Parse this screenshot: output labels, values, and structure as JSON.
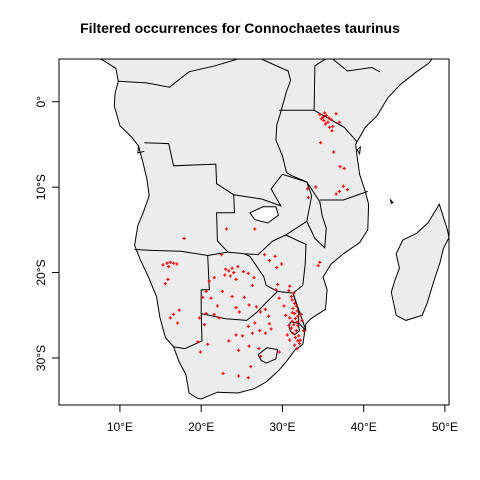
{
  "title": "Filtered occurrences for Connochaetes taurinus",
  "colors": {
    "land": "#ececec",
    "border": "#000000",
    "points": "#ff0000",
    "frame": "#000000"
  },
  "map": {
    "xlim": [
      2.5,
      50.5
    ],
    "ylim": [
      -35.5,
      5.0
    ],
    "x_ticks": [
      {
        "value": 10,
        "label": "10°E"
      },
      {
        "value": 20,
        "label": "20°E"
      },
      {
        "value": 30,
        "label": "30°E"
      },
      {
        "value": 40,
        "label": "40°E"
      },
      {
        "value": 50,
        "label": "50°E"
      }
    ],
    "y_ticks": [
      {
        "value": 0,
        "label": "0°"
      },
      {
        "value": -10,
        "label": "10°S"
      },
      {
        "value": -20,
        "label": "20°S"
      },
      {
        "value": -30,
        "label": "30°S"
      }
    ],
    "occurrences": [
      [
        35.2,
        -1.3
      ],
      [
        35.4,
        -1.6
      ],
      [
        35.0,
        -1.8
      ],
      [
        34.8,
        -2.0
      ],
      [
        35.1,
        -2.2
      ],
      [
        35.6,
        -2.4
      ],
      [
        35.3,
        -2.6
      ],
      [
        35.7,
        -1.9
      ],
      [
        36.0,
        -2.1
      ],
      [
        36.2,
        -2.9
      ],
      [
        34.6,
        -1.5
      ],
      [
        35.8,
        -3.0
      ],
      [
        36.6,
        -1.4
      ],
      [
        37.0,
        -2.4
      ],
      [
        36.1,
        -3.4
      ],
      [
        37.1,
        -7.6
      ],
      [
        37.6,
        -7.8
      ],
      [
        36.3,
        -5.9
      ],
      [
        34.7,
        -4.8
      ],
      [
        37.5,
        -9.9
      ],
      [
        38.0,
        -10.3
      ],
      [
        37.0,
        -10.5
      ],
      [
        36.6,
        -10.8
      ],
      [
        33.1,
        -10.2
      ],
      [
        33.2,
        -11.2
      ],
      [
        34.1,
        -10.0
      ],
      [
        15.3,
        -19.1
      ],
      [
        15.8,
        -18.9
      ],
      [
        16.2,
        -18.8
      ],
      [
        16.6,
        -18.9
      ],
      [
        17.0,
        -19.0
      ],
      [
        16.0,
        -19.3
      ],
      [
        15.9,
        -20.8
      ],
      [
        15.6,
        -21.3
      ],
      [
        17.9,
        -16.0
      ],
      [
        23.0,
        -19.6
      ],
      [
        23.4,
        -19.8
      ],
      [
        23.8,
        -19.5
      ],
      [
        24.0,
        -20.0
      ],
      [
        22.9,
        -20.3
      ],
      [
        23.6,
        -20.4
      ],
      [
        24.5,
        -19.3
      ],
      [
        24.3,
        -20.8
      ],
      [
        25.2,
        -19.9
      ],
      [
        25.8,
        -20.1
      ],
      [
        26.5,
        -20.6
      ],
      [
        26.3,
        -21.5
      ],
      [
        21.0,
        -21.0
      ],
      [
        21.6,
        -20.6
      ],
      [
        22.5,
        -17.9
      ],
      [
        23.1,
        -14.9
      ],
      [
        26.6,
        -14.9
      ],
      [
        20.6,
        -22.2
      ],
      [
        20.2,
        -22.9
      ],
      [
        21.2,
        -23.0
      ],
      [
        22.0,
        -23.9
      ],
      [
        21.6,
        -24.9
      ],
      [
        22.2,
        -25.3
      ],
      [
        22.6,
        -22.2
      ],
      [
        23.8,
        -22.8
      ],
      [
        24.3,
        -24.1
      ],
      [
        24.7,
        -24.6
      ],
      [
        25.3,
        -22.9
      ],
      [
        25.9,
        -23.8
      ],
      [
        26.8,
        -24.0
      ],
      [
        27.3,
        -24.6
      ],
      [
        27.9,
        -24.3
      ],
      [
        28.3,
        -25.1
      ],
      [
        26.6,
        -25.9
      ],
      [
        25.8,
        -26.3
      ],
      [
        26.3,
        -27.1
      ],
      [
        27.2,
        -26.8
      ],
      [
        28.4,
        -26.0
      ],
      [
        27.9,
        -27.1
      ],
      [
        25.1,
        -27.4
      ],
      [
        24.3,
        -27.3
      ],
      [
        23.4,
        -28.0
      ],
      [
        24.6,
        -29.1
      ],
      [
        25.9,
        -28.6
      ],
      [
        27.1,
        -28.9
      ],
      [
        28.6,
        -26.6
      ],
      [
        19.8,
        -25.3
      ],
      [
        20.4,
        -26.1
      ],
      [
        20.6,
        -24.8
      ],
      [
        19.6,
        -28.1
      ],
      [
        19.9,
        -29.3
      ],
      [
        20.8,
        -28.4
      ],
      [
        16.2,
        -25.3
      ],
      [
        17.1,
        -25.9
      ],
      [
        17.3,
        -24.4
      ],
      [
        16.6,
        -24.9
      ],
      [
        31.2,
        -23.2
      ],
      [
        31.5,
        -23.6
      ],
      [
        31.7,
        -23.9
      ],
      [
        31.3,
        -24.2
      ],
      [
        31.8,
        -24.5
      ],
      [
        31.5,
        -24.8
      ],
      [
        31.9,
        -25.1
      ],
      [
        31.6,
        -25.4
      ],
      [
        31.2,
        -25.7
      ],
      [
        31.8,
        -25.8
      ],
      [
        31.4,
        -26.1
      ],
      [
        31.1,
        -26.5
      ],
      [
        31.7,
        -26.8
      ],
      [
        31.3,
        -27.1
      ],
      [
        32.0,
        -27.4
      ],
      [
        31.6,
        -27.6
      ],
      [
        31.9,
        -28.0
      ],
      [
        32.1,
        -28.3
      ],
      [
        31.5,
        -28.5
      ],
      [
        31.8,
        -28.9
      ],
      [
        32.2,
        -27.9
      ],
      [
        30.9,
        -27.9
      ],
      [
        30.6,
        -27.3
      ],
      [
        30.8,
        -26.2
      ],
      [
        30.4,
        -25.0
      ],
      [
        30.2,
        -23.9
      ],
      [
        31.1,
        -22.8
      ],
      [
        31.4,
        -22.4
      ],
      [
        30.8,
        -22.1
      ],
      [
        29.6,
        -23.0
      ],
      [
        29.2,
        -22.0
      ],
      [
        29.4,
        -21.4
      ],
      [
        30.9,
        -21.6
      ],
      [
        31.2,
        -24.7
      ],
      [
        30.9,
        -25.3
      ],
      [
        32.3,
        -24.9
      ],
      [
        32.4,
        -25.6
      ],
      [
        31.9,
        -26.2
      ],
      [
        32.6,
        -26.8
      ],
      [
        29.1,
        -18.1
      ],
      [
        28.4,
        -18.6
      ],
      [
        27.8,
        -17.9
      ],
      [
        29.9,
        -19.0
      ],
      [
        29.3,
        -19.4
      ],
      [
        34.6,
        -18.8
      ],
      [
        34.4,
        -19.2
      ],
      [
        29.6,
        -29.3
      ],
      [
        27.3,
        -29.8
      ],
      [
        22.7,
        -31.8
      ],
      [
        24.6,
        -32.1
      ],
      [
        26.1,
        -31.0
      ],
      [
        25.8,
        -32.3
      ]
    ]
  }
}
